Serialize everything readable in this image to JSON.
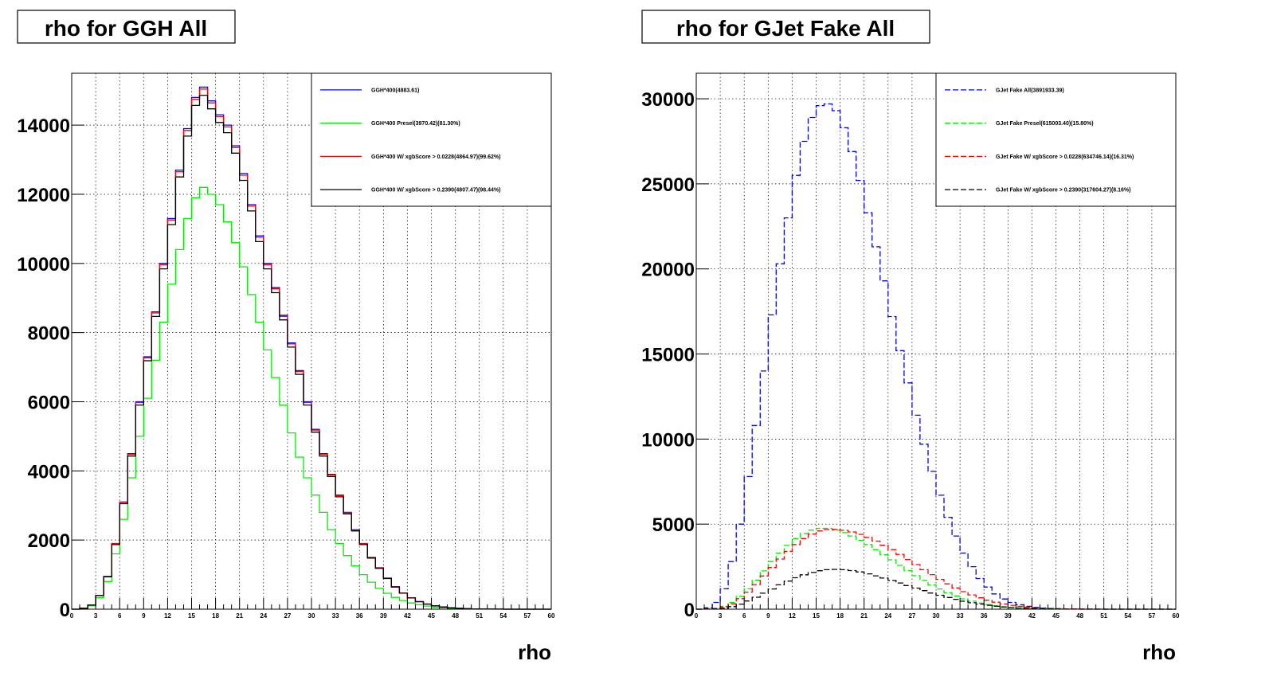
{
  "chart_data": [
    {
      "type": "line",
      "title": "rho for GGH All",
      "xlabel": "rho",
      "ylabel": "",
      "xlim": [
        0,
        60
      ],
      "ylim": [
        0,
        15500
      ],
      "grid": true,
      "legend_position": "top-right",
      "x_ticks": [
        0,
        3,
        6,
        9,
        12,
        15,
        18,
        21,
        24,
        27,
        30,
        33,
        36,
        39,
        42,
        45,
        48,
        51,
        54,
        57,
        60
      ],
      "y_ticks": [
        0,
        2000,
        4000,
        6000,
        8000,
        10000,
        12000,
        14000
      ],
      "x": [
        0,
        1,
        2,
        3,
        4,
        5,
        6,
        7,
        8,
        9,
        10,
        11,
        12,
        13,
        14,
        15,
        16,
        17,
        18,
        19,
        20,
        21,
        22,
        23,
        24,
        25,
        26,
        27,
        28,
        29,
        30,
        31,
        32,
        33,
        34,
        35,
        36,
        37,
        38,
        39,
        40,
        41,
        42,
        43,
        44,
        45,
        46,
        47,
        48,
        49,
        50,
        51,
        52,
        53,
        54,
        55,
        56,
        57,
        58,
        59,
        60
      ],
      "series": [
        {
          "name": "GGH*400(4883.61)",
          "color": "#0000ff",
          "dash": "solid",
          "values": [
            0,
            30,
            120,
            400,
            950,
            1900,
            3100,
            4500,
            6000,
            7300,
            8600,
            10000,
            11300,
            12700,
            13900,
            14800,
            15100,
            14700,
            14300,
            14000,
            13400,
            12600,
            11700,
            10800,
            10000,
            9300,
            8500,
            7700,
            6900,
            6000,
            5200,
            4500,
            3900,
            3300,
            2800,
            2300,
            1900,
            1500,
            1200,
            900,
            650,
            470,
            330,
            220,
            150,
            100,
            65,
            40,
            25,
            15,
            10,
            6,
            4,
            2,
            1,
            0,
            0,
            0,
            0,
            0,
            0
          ]
        },
        {
          "name": "GGH*400 Presel(3970.42)(81.30%)",
          "color": "#00ee00",
          "dash": "solid",
          "values": [
            0,
            25,
            100,
            330,
            800,
            1600,
            2600,
            3800,
            5000,
            6100,
            7200,
            8300,
            9400,
            10400,
            11300,
            11900,
            12200,
            12000,
            11700,
            11200,
            10600,
            9900,
            9100,
            8300,
            7500,
            6700,
            5900,
            5100,
            4400,
            3800,
            3300,
            2800,
            2300,
            1900,
            1550,
            1250,
            1000,
            780,
            600,
            460,
            340,
            250,
            180,
            130,
            90,
            60,
            40,
            25,
            15,
            10,
            6,
            4,
            2,
            1,
            0,
            0,
            0,
            0,
            0,
            0,
            0
          ]
        },
        {
          "name": "GGH*400 W/ xgbScore > 0.0228(4864.97)(99.62%)",
          "color": "#ff0000",
          "dash": "solid",
          "values": [
            0,
            30,
            119,
            398,
            946,
            1893,
            3088,
            4483,
            5977,
            7272,
            8567,
            9962,
            11257,
            12652,
            13847,
            14744,
            15043,
            14644,
            14246,
            13947,
            13349,
            12552,
            11656,
            10759,
            9962,
            9265,
            8468,
            7671,
            6874,
            5977,
            5180,
            4483,
            3885,
            3287,
            2789,
            2291,
            1893,
            1494,
            1195,
            897,
            648,
            468,
            329,
            219,
            149,
            100,
            65,
            40,
            25,
            15,
            10,
            6,
            4,
            2,
            1,
            0,
            0,
            0,
            0,
            0,
            0
          ]
        },
        {
          "name": "GGH*400 W/ xgbScore > 0.2390(4807.47)(98.44%)",
          "color": "#000000",
          "dash": "solid",
          "values": [
            0,
            30,
            118,
            394,
            935,
            1870,
            3052,
            4430,
            5906,
            7186,
            8466,
            9844,
            11124,
            12502,
            13683,
            14569,
            14864,
            14471,
            14077,
            13782,
            13191,
            12403,
            11517,
            10631,
            9844,
            9155,
            8367,
            7580,
            6792,
            5906,
            5119,
            4430,
            3839,
            3249,
            2756,
            2264,
            1870,
            1477,
            1181,
            886,
            640,
            463,
            325,
            217,
            148,
            98,
            64,
            39,
            25,
            15,
            10,
            6,
            4,
            2,
            1,
            0,
            0,
            0,
            0,
            0,
            0
          ]
        }
      ]
    },
    {
      "type": "line",
      "title": "rho for GJet Fake All",
      "xlabel": "rho",
      "ylabel": "",
      "xlim": [
        0,
        60
      ],
      "ylim": [
        0,
        31500
      ],
      "grid": true,
      "legend_position": "top-right",
      "x_ticks": [
        0,
        3,
        6,
        9,
        12,
        15,
        18,
        21,
        24,
        27,
        30,
        33,
        36,
        39,
        42,
        45,
        48,
        51,
        54,
        57,
        60
      ],
      "y_ticks": [
        0,
        5000,
        10000,
        15000,
        20000,
        25000,
        30000
      ],
      "x": [
        0,
        1,
        2,
        3,
        4,
        5,
        6,
        7,
        8,
        9,
        10,
        11,
        12,
        13,
        14,
        15,
        16,
        17,
        18,
        19,
        20,
        21,
        22,
        23,
        24,
        25,
        26,
        27,
        28,
        29,
        30,
        31,
        32,
        33,
        34,
        35,
        36,
        37,
        38,
        39,
        40,
        41,
        42,
        43,
        44,
        45,
        46,
        47,
        48,
        49,
        50,
        51,
        52,
        53,
        54,
        55,
        56,
        57,
        58,
        59,
        60
      ],
      "series": [
        {
          "name": "GJet Fake All(3891933.39)",
          "color": "#0000ff",
          "dash": "dashed",
          "values": [
            0,
            80,
            400,
            1200,
            2800,
            5000,
            7800,
            10800,
            14000,
            17300,
            20300,
            23000,
            25500,
            27500,
            28900,
            29600,
            29700,
            29300,
            28300,
            26900,
            25200,
            23300,
            21300,
            19300,
            17200,
            15200,
            13300,
            11400,
            9700,
            8100,
            6700,
            5400,
            4300,
            3300,
            2500,
            1800,
            1300,
            900,
            600,
            400,
            260,
            170,
            110,
            70,
            45,
            30,
            20,
            12,
            8,
            5,
            3,
            2,
            1,
            0,
            0,
            0,
            0,
            0,
            0,
            0,
            0
          ]
        },
        {
          "name": "GJet Fake Presel(615003.40)(15.80%)",
          "color": "#00ee00",
          "dash": "dashed",
          "values": [
            0,
            10,
            50,
            170,
            400,
            760,
            1200,
            1700,
            2250,
            2800,
            3300,
            3750,
            4150,
            4450,
            4650,
            4750,
            4750,
            4650,
            4500,
            4300,
            4050,
            3800,
            3500,
            3200,
            2900,
            2580,
            2270,
            1970,
            1690,
            1430,
            1190,
            970,
            780,
            610,
            470,
            360,
            270,
            200,
            140,
            100,
            70,
            48,
            32,
            21,
            14,
            9,
            6,
            4,
            2,
            1,
            1,
            0,
            0,
            0,
            0,
            0,
            0,
            0,
            0,
            0,
            0
          ]
        },
        {
          "name": "GJet Fake W/ xgbScore > 0.0228(634746.14)(16.31%)",
          "color": "#ff0000",
          "dash": "dashed",
          "values": [
            0,
            8,
            40,
            130,
            320,
            620,
            1000,
            1450,
            1950,
            2450,
            2950,
            3400,
            3800,
            4150,
            4420,
            4600,
            4680,
            4690,
            4640,
            4540,
            4400,
            4220,
            4000,
            3760,
            3500,
            3220,
            2920,
            2620,
            2320,
            2030,
            1750,
            1490,
            1250,
            1030,
            840,
            670,
            530,
            410,
            310,
            230,
            170,
            120,
            85,
            58,
            40,
            27,
            18,
            12,
            8,
            5,
            3,
            2,
            1,
            0,
            0,
            0,
            0,
            0,
            0,
            0,
            0
          ]
        },
        {
          "name": "GJet Fake W/ xgbScore > 0.2390(317604.27)(8.16%)",
          "color": "#000000",
          "dash": "dashed",
          "values": [
            0,
            4,
            20,
            60,
            150,
            300,
            480,
            700,
            940,
            1190,
            1430,
            1650,
            1850,
            2020,
            2160,
            2260,
            2320,
            2340,
            2320,
            2270,
            2190,
            2080,
            1960,
            1830,
            1690,
            1540,
            1390,
            1240,
            1090,
            950,
            820,
            690,
            580,
            470,
            380,
            300,
            230,
            175,
            130,
            95,
            68,
            48,
            33,
            22,
            15,
            10,
            6,
            4,
            2,
            1,
            1,
            0,
            0,
            0,
            0,
            0,
            0,
            0,
            0,
            0,
            0
          ]
        }
      ]
    }
  ]
}
